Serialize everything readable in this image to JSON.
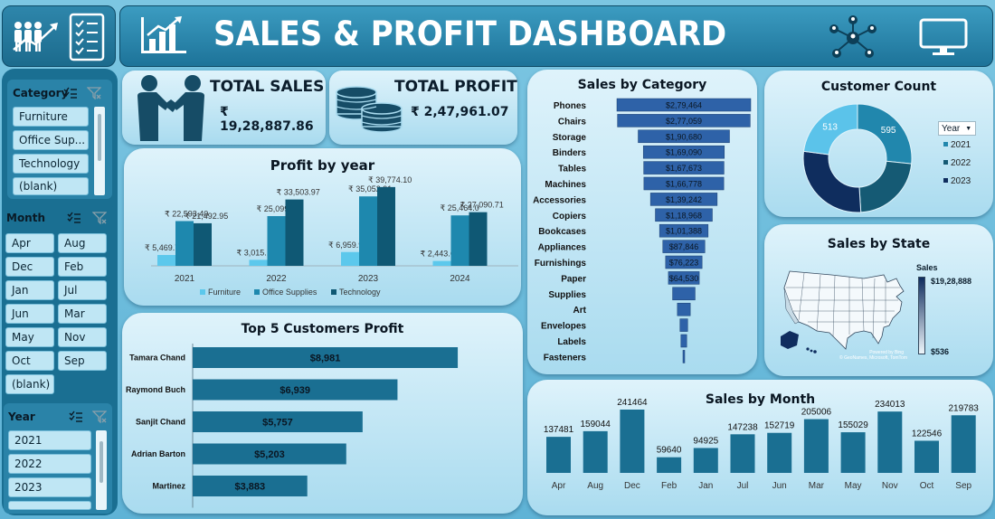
{
  "header": {
    "title": "SALES & PROFIT DASHBOARD"
  },
  "slicers": {
    "category": {
      "title": "Category",
      "items": [
        "Furniture",
        "Office Sup...",
        "Technology",
        "(blank)"
      ]
    },
    "month": {
      "title": "Month",
      "items": [
        "Apr",
        "Aug",
        "Dec",
        "Feb",
        "Jan",
        "Jul",
        "Jun",
        "Mar",
        "May",
        "Nov",
        "Oct",
        "Sep",
        "(blank)"
      ]
    },
    "year": {
      "title": "Year",
      "items": [
        "2021",
        "2022",
        "2023"
      ]
    }
  },
  "kpis": {
    "total_sales": {
      "label": "TOTAL SALES",
      "value": "₹ 19,28,887.86"
    },
    "total_profit": {
      "label": "TOTAL PROFIT",
      "value": "₹ 2,47,961.07"
    }
  },
  "colors": {
    "furniture": "#5cc8ec",
    "office": "#1e88ae",
    "technology": "#0f5874",
    "bar": "#1a6f92",
    "funnel": "#2e62a8"
  },
  "chart_data": [
    {
      "id": "profit_by_year",
      "type": "bar",
      "title": "Profit by year",
      "categories": [
        "2021",
        "2022",
        "2023",
        "2024"
      ],
      "series": [
        {
          "name": "Furniture",
          "values": [
            5469.77,
            3015.17,
            6959.93,
            2443.6
          ],
          "labels": [
            "₹ 5,469.77",
            "₹ 3,015.17",
            "₹ 6,959.93",
            "₹ 2,443.60"
          ]
        },
        {
          "name": "Office Supplies",
          "values": [
            22593.4,
            25099.0,
            35052.91,
            25464.0
          ],
          "labels": [
            "₹ 22,593.40",
            "₹ 25,099.",
            "₹ 35,052.91",
            "₹ 25,464.0"
          ]
        },
        {
          "name": "Technology",
          "values": [
            21492.95,
            33503.97,
            39774.1,
            27090.71
          ],
          "labels": [
            "₹ 21,492.95",
            "₹ 33,503.97",
            "₹ 39,774.10",
            "₹ 27,090.71"
          ]
        }
      ],
      "ylim": [
        0,
        42000
      ],
      "legend": "bottom"
    },
    {
      "id": "top5_customers_profit",
      "type": "bar",
      "title": "Top 5 Customers Profit",
      "orientation": "horizontal",
      "categories": [
        "Tamara Chand",
        "Raymond Buch",
        "Sanjit Chand",
        "Adrian Barton",
        "Martinez"
      ],
      "values": [
        8981,
        6939,
        5757,
        5203,
        3883
      ],
      "labels": [
        "$8,981",
        "$6,939",
        "$5,757",
        "$5,203",
        "$3,883"
      ],
      "xlim": [
        0,
        9500
      ]
    },
    {
      "id": "sales_by_category",
      "type": "bar",
      "title": "Sales by Category",
      "orientation": "funnel",
      "categories": [
        "Phones",
        "Chairs",
        "Storage",
        "Binders",
        "Tables",
        "Machines",
        "Accessories",
        "Copiers",
        "Bookcases",
        "Appliances",
        "Furnishings",
        "Paper",
        "Supplies",
        "Art",
        "Envelopes",
        "Labels",
        "Fasteners"
      ],
      "values": [
        279464,
        277059,
        190680,
        169090,
        167673,
        166778,
        139242,
        118968,
        101388,
        87846,
        76223,
        64530,
        47000,
        27000,
        16000,
        12000,
        3000
      ],
      "labels": [
        "$2,79,464",
        "$2,77,059",
        "$1,90,680",
        "$1,69,090",
        "$1,67,673",
        "$1,66,778",
        "$1,39,242",
        "$1,18,968",
        "$1,01,388",
        "$87,846",
        "$76,223",
        "$64,530",
        "",
        "",
        "",
        "",
        ""
      ]
    },
    {
      "id": "customer_count",
      "type": "pie",
      "title": "Customer Count",
      "legend_title": "Year",
      "categories": [
        "2021",
        "2022",
        "2023",
        "2024"
      ],
      "values": [
        595,
        500,
        626,
        513
      ],
      "labels": [
        "595",
        "",
        "",
        "513"
      ],
      "colors": [
        "#2187ad",
        "#155a74",
        "#0f2d5e",
        "#5bc3ea"
      ],
      "legend": [
        "2021",
        "2022",
        "2023"
      ]
    },
    {
      "id": "sales_by_state",
      "type": "heatmap",
      "title": "Sales by State",
      "legend_title": "Sales",
      "range_labels": [
        "$19,28,888",
        "$536"
      ],
      "attribution": [
        "Powered by Bing",
        "© GeoNames, Microsoft, TomTom"
      ]
    },
    {
      "id": "sales_by_month",
      "type": "bar",
      "title": "Sales by Month",
      "categories": [
        "Apr",
        "Aug",
        "Dec",
        "Feb",
        "Jan",
        "Jul",
        "Jun",
        "Mar",
        "May",
        "Nov",
        "Oct",
        "Sep"
      ],
      "values": [
        137481,
        159044,
        241464,
        59640,
        94925,
        147238,
        152719,
        205006,
        155029,
        234013,
        122546,
        219783
      ],
      "ylim": [
        0,
        260000
      ]
    }
  ]
}
